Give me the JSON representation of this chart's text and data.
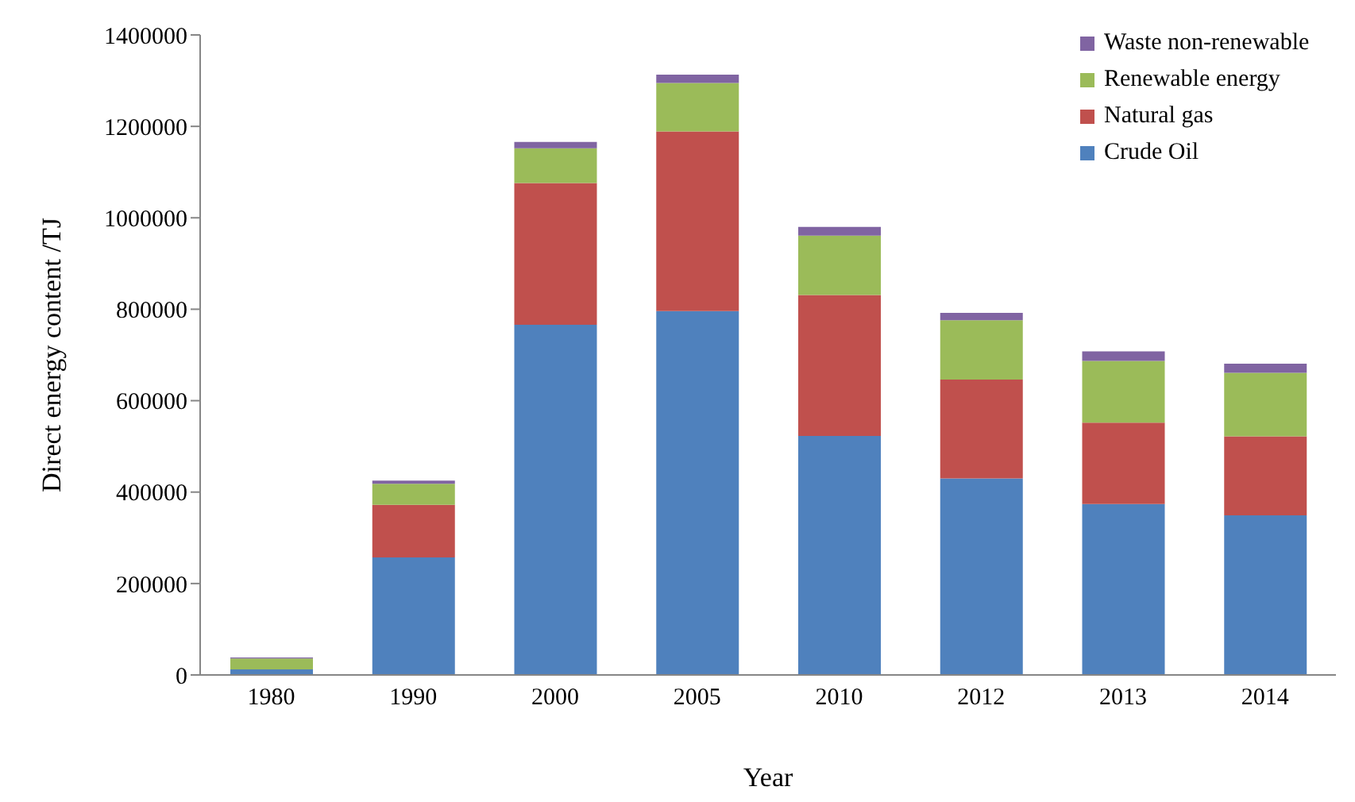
{
  "chart_data": {
    "type": "bar",
    "stacked": true,
    "xlabel": "Year",
    "ylabel": "Direct energy content /TJ",
    "categories": [
      "1980",
      "1990",
      "2000",
      "2005",
      "2010",
      "2012",
      "2013",
      "2014"
    ],
    "series": [
      {
        "name": "Crude Oil",
        "color": "#4f81bd",
        "values": [
          12000,
          257000,
          766000,
          796000,
          523000,
          430000,
          374000,
          349000
        ]
      },
      {
        "name": "Natural gas",
        "color": "#c0504d",
        "values": [
          0,
          115000,
          310000,
          393000,
          308000,
          216000,
          178000,
          173000
        ]
      },
      {
        "name": "Renewable energy",
        "color": "#9bbb59",
        "values": [
          24000,
          46000,
          76000,
          106000,
          130000,
          130000,
          135000,
          139000
        ]
      },
      {
        "name": "Waste non-renewable",
        "color": "#8064a2",
        "values": [
          2000,
          7000,
          14000,
          18000,
          19000,
          16000,
          21000,
          20000
        ]
      }
    ],
    "ylim": [
      0,
      1400000
    ],
    "yticks": [
      0,
      200000,
      400000,
      600000,
      800000,
      1000000,
      1200000,
      1400000
    ],
    "grid": false,
    "legend": "top right"
  }
}
